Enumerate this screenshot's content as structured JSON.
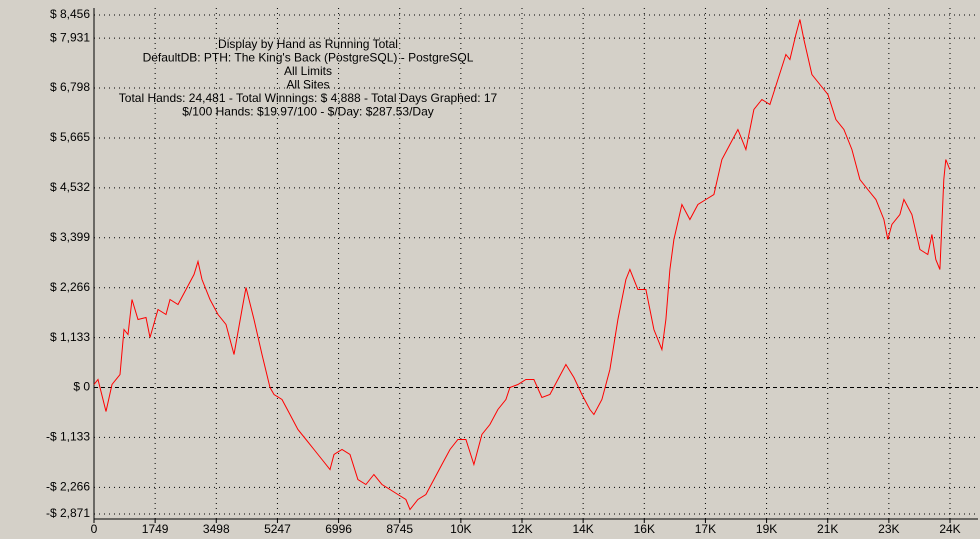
{
  "chart_data": {
    "type": "line",
    "annotations": [
      "Display by Hand as Running Total",
      "DefaultDB: PTH: The King's Back (PostgreSQL) - PostgreSQL",
      "All Limits",
      "All Sites",
      "Total Hands: 24,481 - Total Winnings: $ 4,888 - Total Days Graphed: 17",
      "$/100 Hands: $19.97/100 - $/Day: $287.53/Day"
    ],
    "xlim": [
      0,
      24486
    ],
    "ylim": [
      -2871,
      8456
    ],
    "xticks": [
      0,
      1749,
      3498,
      5247,
      6996,
      8745,
      {
        "value": 10494,
        "label": "10K"
      },
      {
        "value": 12243,
        "label": "12K"
      },
      {
        "value": 13992,
        "label": "14K"
      },
      {
        "value": 15741,
        "label": "16K"
      },
      {
        "value": 17490,
        "label": "17K"
      },
      {
        "value": 19239,
        "label": "19K"
      },
      {
        "value": 20988,
        "label": "21K"
      },
      {
        "value": 22737,
        "label": "23K"
      },
      {
        "value": 24486,
        "label": "24K"
      }
    ],
    "yticks": [
      {
        "value": 8456,
        "label": "$ 8,456"
      },
      {
        "value": 7931,
        "label": "$ 7,931"
      },
      {
        "value": 6798,
        "label": "$ 6,798"
      },
      {
        "value": 5665,
        "label": "$ 5,665"
      },
      {
        "value": 4532,
        "label": "$ 4,532"
      },
      {
        "value": 3399,
        "label": "$ 3,399"
      },
      {
        "value": 2266,
        "label": "$ 2,266"
      },
      {
        "value": 1133,
        "label": "$ 1,133"
      },
      {
        "value": 0,
        "label": "$ 0"
      },
      {
        "value": -1133,
        "label": "-$ 1,133"
      },
      {
        "value": -2266,
        "label": "-$ 2,266"
      },
      {
        "value": -2871,
        "label": "-$ 2,871"
      }
    ],
    "grid": true,
    "x": [
      0,
      114,
      343,
      515,
      744,
      858,
      972,
      1087,
      1258,
      1487,
      1602,
      1830,
      2059,
      2174,
      2402,
      2631,
      2860,
      2974,
      3089,
      3318,
      3546,
      3775,
      4004,
      4233,
      4347,
      4576,
      4805,
      5034,
      5148,
      5377,
      5606,
      5834,
      6063,
      6292,
      6521,
      6750,
      6864,
      7093,
      7322,
      7550,
      7779,
      8008,
      8237,
      8466,
      8694,
      8923,
      9038,
      9266,
      9495,
      9724,
      9953,
      10182,
      10410,
      10639,
      10868,
      11097,
      11326,
      11554,
      11783,
      11898,
      12126,
      12355,
      12584,
      12813,
      13042,
      13270,
      13499,
      13728,
      13957,
      14186,
      14300,
      14529,
      14758,
      14986,
      15215,
      15330,
      15558,
      15787,
      16016,
      16245,
      16359,
      16474,
      16588,
      16817,
      17046,
      17274,
      17503,
      17732,
      17961,
      18190,
      18418,
      18647,
      18876,
      19105,
      19334,
      19562,
      19791,
      19906,
      20077,
      20192,
      20306,
      20535,
      20764,
      20992,
      21221,
      21450,
      21679,
      21908,
      22136,
      22365,
      22594,
      22708,
      22823,
      23052,
      23166,
      23395,
      23624,
      23852,
      23967,
      24081,
      24196,
      24310,
      24367,
      24481
    ],
    "series": [
      {
        "color": "#ff0000",
        "values": [
          68,
          182,
          -545,
          68,
          295,
          1317,
          1203,
          1998,
          1544,
          1589,
          1135,
          1771,
          1657,
          1998,
          1884,
          2225,
          2565,
          2860,
          2452,
          1998,
          1657,
          1430,
          749,
          1771,
          2270,
          1544,
          749,
          0,
          -159,
          -272,
          -613,
          -953,
          -1180,
          -1407,
          -1634,
          -1861,
          -1521,
          -1407,
          -1521,
          -2088,
          -2202,
          -1975,
          -2202,
          -2315,
          -2429,
          -2542,
          -2769,
          -2542,
          -2429,
          -2088,
          -1748,
          -1407,
          -1180,
          -1180,
          -1748,
          -1067,
          -840,
          -499,
          -272,
          0,
          68,
          182,
          182,
          -227,
          -159,
          182,
          522,
          227,
          -159,
          -499,
          -613,
          -272,
          409,
          1544,
          2452,
          2679,
          2225,
          2225,
          1317,
          863,
          1544,
          2679,
          3360,
          4154,
          3814,
          4154,
          4268,
          4381,
          5176,
          5516,
          5857,
          5403,
          6311,
          6538,
          6424,
          6992,
          7559,
          7446,
          8013,
          8354,
          7900,
          7105,
          6878,
          6651,
          6084,
          5857,
          5403,
          4722,
          4495,
          4268,
          3814,
          3360,
          3700,
          3927,
          4268,
          3927,
          3133,
          3019,
          3473,
          2906,
          2679,
          4722,
          5176,
          4949
        ]
      }
    ]
  }
}
